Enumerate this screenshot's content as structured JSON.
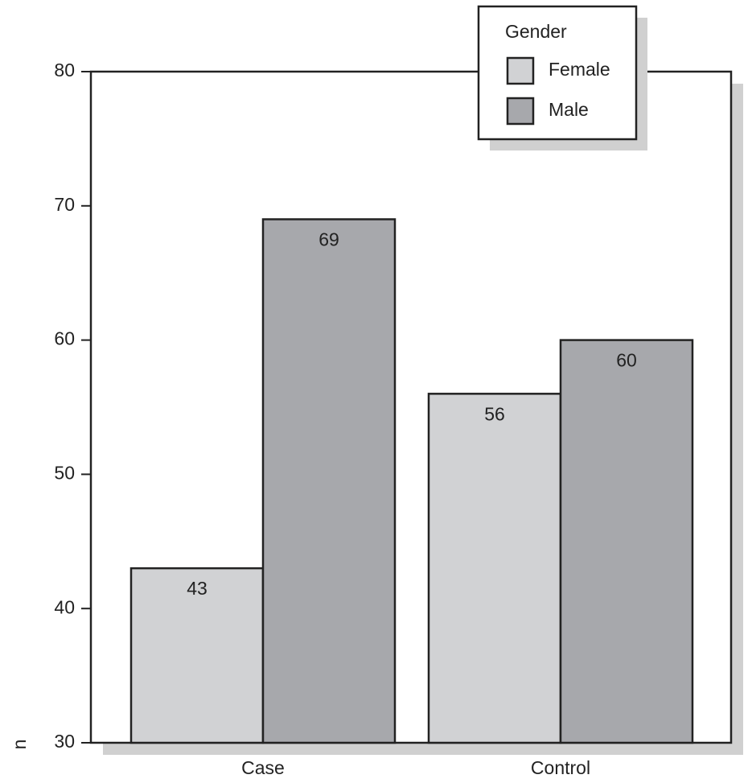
{
  "chart_data": {
    "type": "bar",
    "y_label": "n",
    "categories": [
      "Case",
      "Control"
    ],
    "series": [
      {
        "name": "Female",
        "color": "#d1d2d4",
        "values": [
          43,
          56
        ]
      },
      {
        "name": "Male",
        "color": "#a7a8ac",
        "values": [
          69,
          60
        ]
      }
    ],
    "legend_title": "Gender",
    "legend": "top-right",
    "ylim": [
      30,
      80
    ],
    "yticks": [
      30,
      40,
      50,
      60,
      70,
      80
    ]
  }
}
